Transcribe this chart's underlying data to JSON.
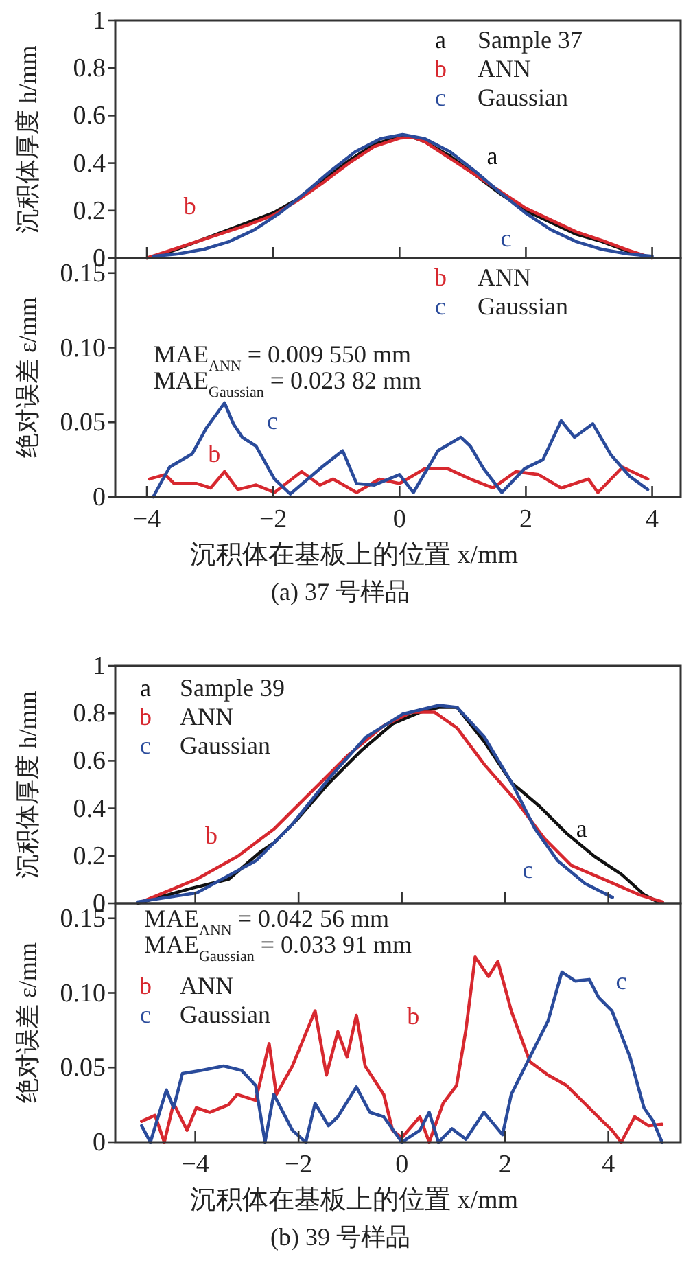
{
  "chart_data": [
    {
      "type": "line",
      "ylabel": "沉积体厚度 h/mm",
      "xlim": [
        -4.5,
        4.45
      ],
      "ylim": [
        0,
        1
      ],
      "xticks": [
        -4,
        -2,
        0,
        2,
        4
      ],
      "yticks": [
        0,
        0.2,
        0.4,
        0.6,
        0.8,
        1.0
      ],
      "tick_labels": "y",
      "legend": "top right",
      "series": [
        {
          "name": "a",
          "color": "#111111",
          "x": [
            -4.0,
            -3.6,
            -3.2,
            -2.8,
            -2.4,
            -2.0,
            -1.6,
            -1.2,
            -0.8,
            -0.4,
            0,
            0.2,
            0.4,
            0.8,
            1.2,
            1.6,
            2.0,
            2.4,
            2.8,
            3.2,
            3.6,
            4.0
          ],
          "values": [
            0,
            0.03,
            0.07,
            0.11,
            0.15,
            0.19,
            0.25,
            0.33,
            0.41,
            0.48,
            0.51,
            0.51,
            0.49,
            0.43,
            0.35,
            0.27,
            0.2,
            0.15,
            0.1,
            0.07,
            0.03,
            0
          ]
        },
        {
          "name": "b",
          "color": "#d7282f",
          "x": [
            -4.0,
            -3.6,
            -3.2,
            -2.8,
            -2.4,
            -2.0,
            -1.6,
            -1.2,
            -0.8,
            -0.4,
            0,
            0.2,
            0.4,
            0.8,
            1.2,
            1.6,
            2.0,
            2.4,
            2.8,
            3.2,
            3.6,
            4.0
          ],
          "values": [
            0,
            0.035,
            0.07,
            0.105,
            0.14,
            0.18,
            0.245,
            0.32,
            0.4,
            0.47,
            0.505,
            0.51,
            0.49,
            0.42,
            0.35,
            0.28,
            0.21,
            0.16,
            0.11,
            0.075,
            0.035,
            0
          ]
        },
        {
          "name": "c",
          "color": "#2a4b9b",
          "x": [
            -3.9,
            -3.5,
            -3.1,
            -2.7,
            -2.3,
            -1.9,
            -1.5,
            -1.1,
            -0.7,
            -0.3,
            0.05,
            0.4,
            0.8,
            1.2,
            1.6,
            2.0,
            2.4,
            2.8,
            3.2,
            3.6,
            4.0
          ],
          "values": [
            0.008,
            0.018,
            0.037,
            0.069,
            0.119,
            0.189,
            0.274,
            0.365,
            0.448,
            0.503,
            0.52,
            0.503,
            0.448,
            0.365,
            0.274,
            0.189,
            0.119,
            0.069,
            0.037,
            0.018,
            0.008
          ]
        }
      ],
      "annotations": [
        "Sample 37",
        "ANN",
        "Gaussian",
        "a",
        "b",
        "c"
      ]
    },
    {
      "type": "line",
      "title": "(a) 37 号样品",
      "xlabel": "沉积体在基板上的位置 x/mm",
      "ylabel": "绝对误差 ε/mm",
      "xlim": [
        -4.5,
        4.45
      ],
      "ylim": [
        0,
        0.16
      ],
      "xticks": [
        -4,
        -2,
        0,
        2,
        4
      ],
      "yticks": [
        {
          "value": 0,
          "label": "0"
        },
        {
          "value": 0.05,
          "label": "0.05"
        },
        {
          "value": 0.1,
          "label": "0.10"
        },
        {
          "value": 0.15,
          "label": "0.15"
        }
      ],
      "legend": "top right",
      "series": [
        {
          "name": "b",
          "color": "#d7282f",
          "x": [
            -3.96,
            -3.71,
            -3.57,
            -3.21,
            -2.99,
            -2.77,
            -2.56,
            -2.27,
            -1.98,
            -1.55,
            -1.26,
            -1.05,
            -0.68,
            -0.32,
            0,
            0.4,
            0.76,
            1.12,
            1.48,
            1.84,
            2.2,
            2.56,
            2.99,
            3.14,
            3.53,
            3.93
          ],
          "values": [
            0.012,
            0.015,
            0.009,
            0.009,
            0.006,
            0.017,
            0.005,
            0.008,
            0.003,
            0.017,
            0.008,
            0.012,
            0.003,
            0.012,
            0.009,
            0.019,
            0.019,
            0.012,
            0.006,
            0.017,
            0.015,
            0.006,
            0.012,
            0.003,
            0.02,
            0.012
          ]
        },
        {
          "name": "c",
          "color": "#2a4b9b",
          "x": [
            -3.9,
            -3.64,
            -3.28,
            -3.06,
            -2.77,
            -2.63,
            -2.49,
            -2.27,
            -1.98,
            -1.73,
            -1.26,
            -0.9,
            -0.68,
            -0.4,
            0,
            0.22,
            0.61,
            0.97,
            1.12,
            1.33,
            1.62,
            1.98,
            2.27,
            2.56,
            2.77,
            3.06,
            3.35,
            3.64,
            3.93
          ],
          "values": [
            0,
            0.02,
            0.029,
            0.046,
            0.063,
            0.049,
            0.04,
            0.034,
            0.012,
            0.002,
            0.019,
            0.031,
            0.009,
            0.008,
            0.015,
            0.003,
            0.031,
            0.04,
            0.034,
            0.019,
            0.003,
            0.019,
            0.025,
            0.051,
            0.04,
            0.049,
            0.028,
            0.014,
            0.005
          ]
        }
      ],
      "annotations": [
        "ANN",
        "Gaussian",
        "MAE$_{ANN}$ = 0.009 550 mm",
        "MAE$_{Gaussian}$ = 0.023 82 mm",
        "b",
        "c"
      ]
    },
    {
      "type": "line",
      "ylabel": "沉积体厚度 h/mm",
      "xlim": [
        -5.55,
        5.4
      ],
      "ylim": [
        0,
        1
      ],
      "xticks": [
        -4,
        -2,
        0,
        2,
        4
      ],
      "yticks": [
        0,
        0.2,
        0.4,
        0.6,
        0.8,
        1.0
      ],
      "tick_labels": "y",
      "legend": "top left",
      "series": [
        {
          "name": "a",
          "color": "#111111",
          "x": [
            -5.12,
            -4.06,
            -3.35,
            -2.73,
            -2.47,
            -2.03,
            -1.41,
            -0.79,
            -0.17,
            0.36,
            0.72,
            1.07,
            1.6,
            2.13,
            2.66,
            3.19,
            3.73,
            4.26,
            4.7,
            4.96
          ],
          "values": [
            0,
            0.064,
            0.102,
            0.218,
            0.256,
            0.353,
            0.507,
            0.642,
            0.757,
            0.805,
            0.825,
            0.825,
            0.68,
            0.507,
            0.41,
            0.295,
            0.198,
            0.121,
            0.035,
            0.006
          ]
        },
        {
          "name": "b",
          "color": "#d7282f",
          "x": [
            -5.04,
            -3.97,
            -3.18,
            -2.47,
            -1.76,
            -1.05,
            -0.35,
            0.19,
            0.63,
            1.07,
            1.6,
            2.22,
            2.75,
            3.28,
            3.9,
            4.61,
            5.05
          ],
          "values": [
            0.006,
            0.102,
            0.198,
            0.314,
            0.468,
            0.622,
            0.748,
            0.805,
            0.805,
            0.738,
            0.584,
            0.43,
            0.276,
            0.16,
            0.102,
            0.035,
            0.006
          ]
        },
        {
          "name": "c",
          "color": "#2a4b9b",
          "x": [
            -5.12,
            -3.97,
            -2.82,
            -2.12,
            -1.41,
            -0.7,
            0.01,
            0.72,
            1.07,
            1.6,
            2.13,
            2.58,
            3.02,
            3.55,
            4.08
          ],
          "values": [
            0.006,
            0.044,
            0.18,
            0.333,
            0.526,
            0.699,
            0.796,
            0.834,
            0.825,
            0.7,
            0.507,
            0.314,
            0.179,
            0.083,
            0.025
          ]
        }
      ],
      "annotations": [
        "Sample 39",
        "ANN",
        "Gaussian",
        "a",
        "b",
        "c"
      ]
    },
    {
      "type": "line",
      "title": "(b) 39 号样品",
      "xlabel": "沉积体在基板上的位置 x/mm",
      "ylabel": "绝对误差 ε/mm",
      "xlim": [
        -5.55,
        5.4
      ],
      "ylim": [
        0,
        0.16
      ],
      "xticks": [
        -4,
        -2,
        0,
        2,
        4
      ],
      "yticks": [
        {
          "value": 0,
          "label": "0"
        },
        {
          "value": 0.05,
          "label": "0.05"
        },
        {
          "value": 0.1,
          "label": "0.10"
        },
        {
          "value": 0.15,
          "label": "0.15"
        }
      ],
      "legend": "top left",
      "series": [
        {
          "name": "b",
          "color": "#d7282f",
          "x": [
            -5.04,
            -4.78,
            -4.6,
            -4.42,
            -4.16,
            -3.98,
            -3.72,
            -3.36,
            -3.19,
            -2.83,
            -2.57,
            -2.43,
            -2.12,
            -1.68,
            -1.46,
            -1.24,
            -1.06,
            -0.88,
            -0.71,
            -0.35,
            -0.18,
            0,
            0.35,
            0.53,
            0.8,
            1.06,
            1.24,
            1.42,
            1.68,
            1.86,
            2.12,
            2.48,
            2.83,
            3.19,
            3.54,
            3.89,
            4.07,
            4.25,
            4.51,
            4.78,
            5.04
          ],
          "values": [
            0.014,
            0.018,
            0,
            0.026,
            0.008,
            0.023,
            0.02,
            0.025,
            0.032,
            0.028,
            0.066,
            0.032,
            0.051,
            0.088,
            0.045,
            0.074,
            0.057,
            0.085,
            0.051,
            0.032,
            0.008,
            0.003,
            0.017,
            0,
            0.026,
            0.038,
            0.075,
            0.124,
            0.111,
            0.121,
            0.088,
            0.054,
            0.045,
            0.038,
            0.026,
            0.014,
            0.008,
            0,
            0.017,
            0.011,
            0.012
          ]
        },
        {
          "name": "c",
          "color": "#2a4b9b",
          "x": [
            -5.04,
            -4.87,
            -4.56,
            -4.42,
            -4.25,
            -3.89,
            -3.45,
            -3.1,
            -2.83,
            -2.65,
            -2.48,
            -2.12,
            -1.86,
            -1.68,
            -1.42,
            -1.24,
            -0.88,
            -0.62,
            -0.35,
            0,
            0.35,
            0.53,
            0.71,
            0.97,
            1.24,
            1.59,
            1.95,
            2.12,
            2.48,
            2.83,
            3.1,
            3.36,
            3.63,
            3.81,
            4.07,
            4.42,
            4.69,
            4.87,
            5.04
          ],
          "values": [
            0.011,
            0,
            0.035,
            0.023,
            0.046,
            0.048,
            0.051,
            0.048,
            0.038,
            0,
            0.032,
            0.008,
            0,
            0.026,
            0.011,
            0.017,
            0.037,
            0.02,
            0.017,
            0,
            0.008,
            0.02,
            0,
            0.009,
            0.002,
            0.02,
            0.005,
            0.032,
            0.057,
            0.081,
            0.114,
            0.108,
            0.109,
            0.097,
            0.088,
            0.057,
            0.023,
            0.014,
            0
          ]
        }
      ],
      "annotations": [
        "ANN",
        "Gaussian",
        "MAE$_{ANN}$ = 0.042 56 mm",
        "MAE$_{Gaussian}$ = 0.033 91 mm",
        "b",
        "c"
      ]
    }
  ]
}
